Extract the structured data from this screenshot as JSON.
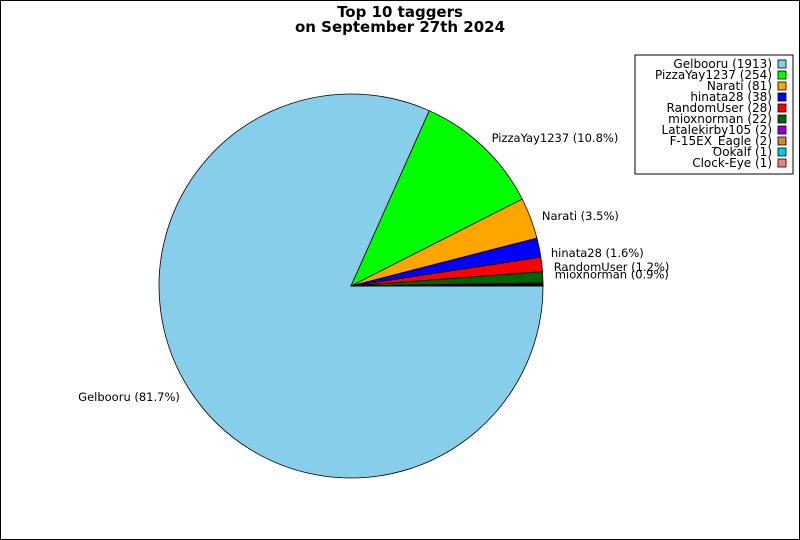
{
  "chart_data": {
    "type": "pie",
    "title_lines": [
      "Top 10 taggers",
      "on September 27th 2024"
    ],
    "slices": [
      {
        "name": "Gelbooru",
        "value": 1913,
        "percent_label": "Gelbooru (81.7%)",
        "legend_label": "Gelbooru (1913)",
        "color": "#87ceeb"
      },
      {
        "name": "PizzaYay1237",
        "value": 254,
        "percent_label": "PizzaYay1237 (10.8%)",
        "legend_label": "PizzaYay1237 (254)",
        "color": "#00ff00"
      },
      {
        "name": "Narati",
        "value": 81,
        "percent_label": "Narati (3.5%)",
        "legend_label": "Narati (81)",
        "color": "#ffa500"
      },
      {
        "name": "hinata28",
        "value": 38,
        "percent_label": "hinata28 (1.6%)",
        "legend_label": "hinata28 (38)",
        "color": "#0000ff"
      },
      {
        "name": "RandomUser",
        "value": 28,
        "percent_label": "RandomUser (1.2%)",
        "legend_label": "RandomUser (28)",
        "color": "#ff0000"
      },
      {
        "name": "mioxnorman",
        "value": 22,
        "percent_label": "mioxnorman (0.9%)",
        "legend_label": "mioxnorman (22)",
        "color": "#006400"
      },
      {
        "name": "Latalekirby105",
        "value": 2,
        "percent_label": "",
        "legend_label": "Latalekirby105 (2)",
        "color": "#9400d3"
      },
      {
        "name": "F-15EX_Eagle",
        "value": 2,
        "percent_label": "",
        "legend_label": "F-15EX_Eagle (2)",
        "color": "#cd853f"
      },
      {
        "name": "Ookalf",
        "value": 1,
        "percent_label": "",
        "legend_label": "Ookalf (1)",
        "color": "#00ced1"
      },
      {
        "name": "Clock-Eye",
        "value": 1,
        "percent_label": "",
        "legend_label": "Clock-Eye (1)",
        "color": "#f08080"
      }
    ],
    "legend_position": "top-right"
  }
}
